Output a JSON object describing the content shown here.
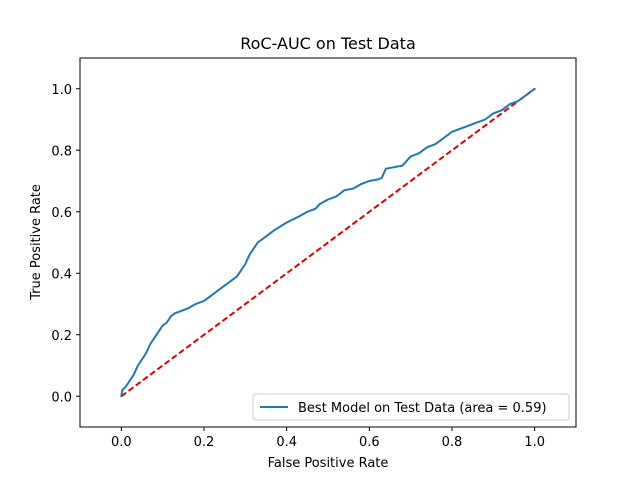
{
  "chart_data": {
    "type": "line",
    "title": "RoC-AUC on Test Data",
    "xlabel": "False Positive Rate",
    "ylabel": "True Positive Rate",
    "xlim": [
      -0.1,
      1.1
    ],
    "ylim": [
      -0.1,
      1.1
    ],
    "xticks": [
      0.0,
      0.2,
      0.4,
      0.6,
      0.8,
      1.0
    ],
    "yticks": [
      0.0,
      0.2,
      0.4,
      0.6,
      0.8,
      1.0
    ],
    "xtick_labels": [
      "0.0",
      "0.2",
      "0.4",
      "0.6",
      "0.8",
      "1.0"
    ],
    "ytick_labels": [
      "0.0",
      "0.2",
      "0.4",
      "0.6",
      "0.8",
      "1.0"
    ],
    "grid": false,
    "legend_position": "lower-right",
    "series": [
      {
        "name": "Best Model on Test Data (area = 0.59)",
        "color": "#1f77b4",
        "style": "solid",
        "x": [
          0.0,
          0.002,
          0.01,
          0.02,
          0.03,
          0.04,
          0.05,
          0.06,
          0.07,
          0.08,
          0.09,
          0.1,
          0.11,
          0.12,
          0.13,
          0.14,
          0.16,
          0.18,
          0.2,
          0.22,
          0.24,
          0.26,
          0.28,
          0.3,
          0.31,
          0.32,
          0.33,
          0.34,
          0.35,
          0.37,
          0.4,
          0.43,
          0.45,
          0.47,
          0.48,
          0.5,
          0.52,
          0.54,
          0.56,
          0.58,
          0.6,
          0.62,
          0.63,
          0.64,
          0.66,
          0.68,
          0.7,
          0.72,
          0.74,
          0.76,
          0.78,
          0.8,
          0.82,
          0.84,
          0.86,
          0.88,
          0.9,
          0.92,
          0.94,
          0.96,
          0.98,
          0.99,
          1.0
        ],
        "y": [
          0.0,
          0.02,
          0.03,
          0.05,
          0.07,
          0.1,
          0.12,
          0.14,
          0.17,
          0.19,
          0.21,
          0.23,
          0.24,
          0.26,
          0.27,
          0.275,
          0.285,
          0.3,
          0.31,
          0.33,
          0.35,
          0.37,
          0.39,
          0.43,
          0.46,
          0.48,
          0.5,
          0.51,
          0.52,
          0.54,
          0.565,
          0.585,
          0.6,
          0.61,
          0.625,
          0.64,
          0.65,
          0.67,
          0.675,
          0.69,
          0.7,
          0.705,
          0.71,
          0.74,
          0.745,
          0.75,
          0.78,
          0.79,
          0.81,
          0.82,
          0.84,
          0.86,
          0.87,
          0.88,
          0.89,
          0.9,
          0.92,
          0.93,
          0.95,
          0.96,
          0.98,
          0.99,
          1.0
        ]
      },
      {
        "name": "",
        "color": "#e00000",
        "style": "dashed",
        "x": [
          0.0,
          1.0
        ],
        "y": [
          0.0,
          1.0
        ]
      }
    ]
  }
}
